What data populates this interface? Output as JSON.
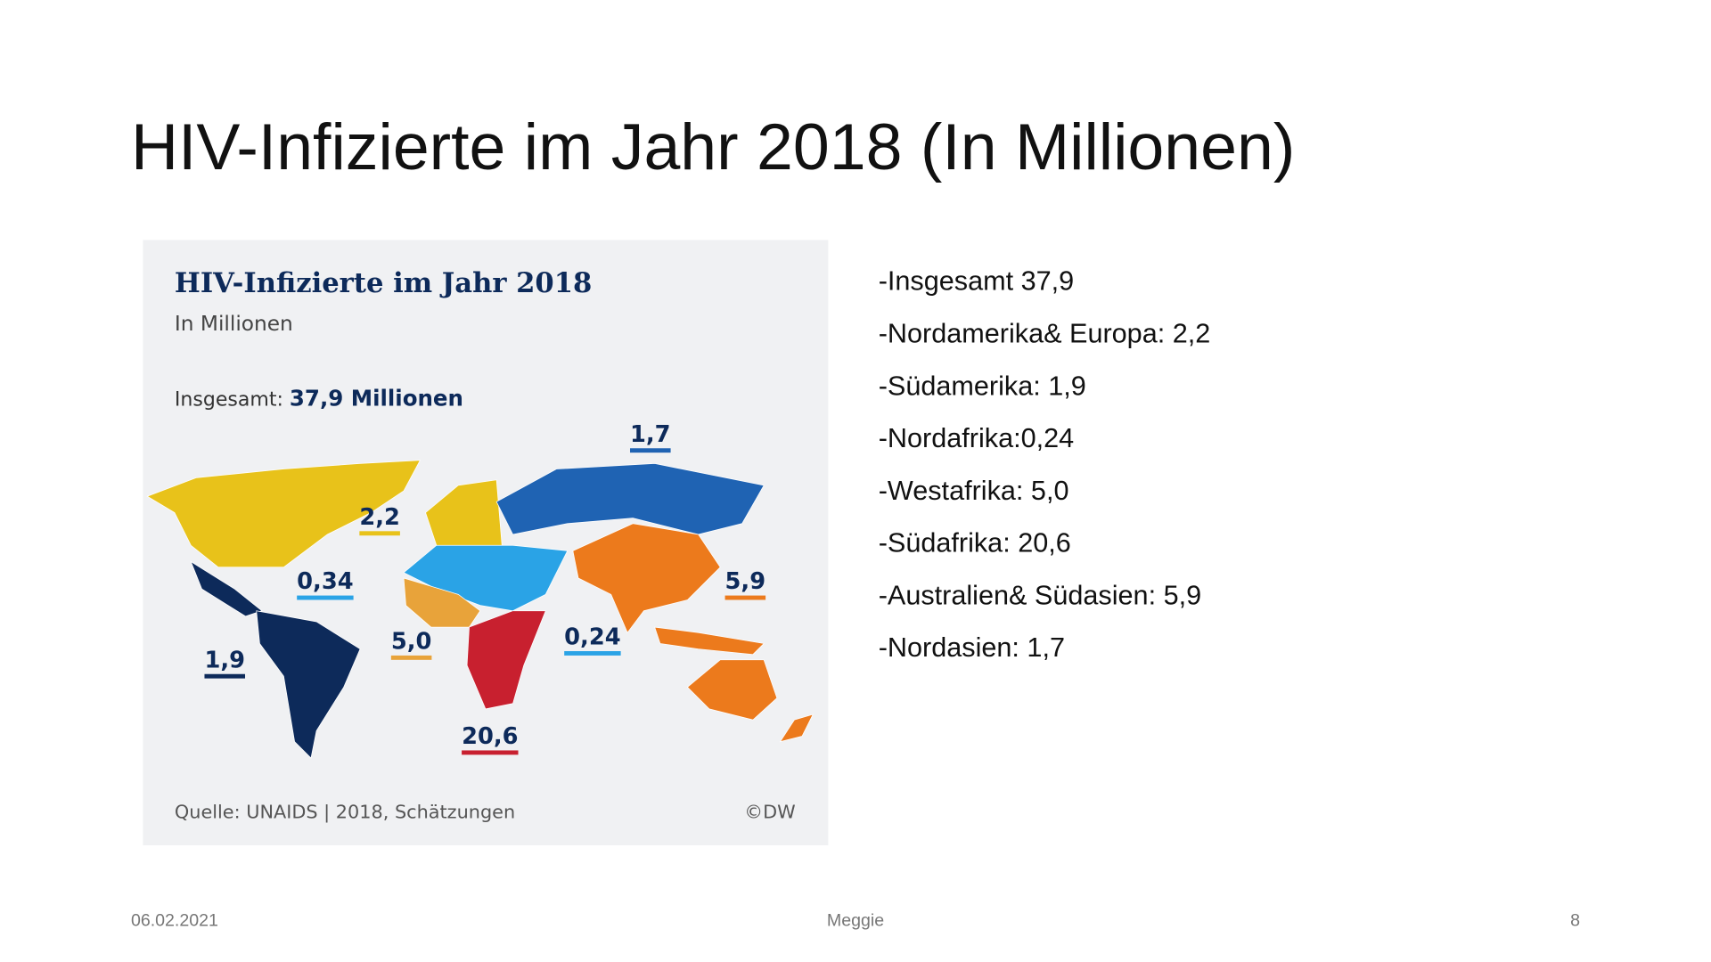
{
  "slide": {
    "title": "HIV-Infizierte im Jahr 2018 (In Millionen)",
    "map": {
      "title": "HIV-Infizierte im Jahr 2018",
      "subtitle": "In Millionen",
      "total_label": "Insgesamt:",
      "total_value": "37,9 Millionen",
      "labels": [
        {
          "text": "1,7",
          "color": "#1f63b3"
        },
        {
          "text": "2,2",
          "color": "#e8c21a"
        },
        {
          "text": "0,34",
          "color": "#2aa3e6"
        },
        {
          "text": "5,9",
          "color": "#ec7a1c"
        },
        {
          "text": "1,9",
          "color": "#0d2a5a"
        },
        {
          "text": "5,0",
          "color": "#e8a33a"
        },
        {
          "text": "0,24",
          "color": "#2aa3e6"
        },
        {
          "text": "20,6",
          "color": "#c8202f"
        }
      ],
      "source": "Quelle: UNAIDS | 2018, Schätzungen",
      "credit": "©DW"
    },
    "bullets": [
      "-Insgesamt 37,9",
      "-Nordamerika& Europa: 2,2",
      "-Südamerika: 1,9",
      "-Nordafrika:0,24",
      "-Westafrika: 5,0",
      "-Südafrika: 20,6",
      "-Australien& Südasien: 5,9",
      "-Nordasien: 1,7"
    ],
    "footer": {
      "date": "06.02.2021",
      "author": "Meggie",
      "page": "8"
    }
  }
}
